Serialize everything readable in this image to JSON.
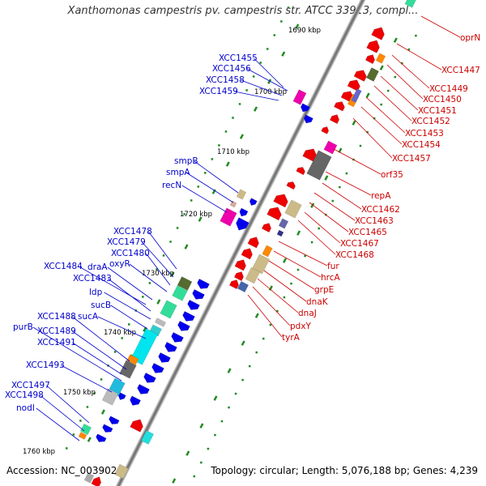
{
  "title": "Xanthomonas campestris pv. campestris str. ATCC 33913, compl...",
  "accession": "Accession: NC_003902",
  "summary": "Topology: circular; Length: 5,076,188 bp; Genes: 4,239",
  "colors": {
    "forward_label": "#0000cc",
    "reverse_label": "#cc0000",
    "forward_gene": "#0000ee",
    "reverse_gene": "#ee0000",
    "backbone": "#888888",
    "tick": "#228b22"
  },
  "kbp_labels": [
    "1690 kbp",
    "1700 kbp",
    "1710 kbp",
    "1720 kbp",
    "1730 kbp",
    "1740 kbp",
    "1750 kbp",
    "1760 kbp"
  ],
  "left_labels": [
    "XCC1455",
    "XCC1456",
    "XCC1458",
    "XCC1459",
    "smpB",
    "smpA",
    "recN",
    "XCC1478",
    "XCC1479",
    "XCC1480",
    "oxyR",
    "XCC1484",
    "draA",
    "XCC1483",
    "ldp",
    "sucB",
    "sucA",
    "XCC1488",
    "purB",
    "XCC1489",
    "XCC1491",
    "XCC1493",
    "XCC1497",
    "XCC1498",
    "nodI"
  ],
  "right_labels": [
    "oprN",
    "XCC1447",
    "XCC1449",
    "XCC1450",
    "XCC1451",
    "XCC1452",
    "XCC1453",
    "XCC1454",
    "XCC1457",
    "orf35",
    "repA",
    "XCC1462",
    "XCC1463",
    "XCC1465",
    "XCC1467",
    "XCC1468",
    "fur",
    "hrcA",
    "grpE",
    "dnaK",
    "dnaJ",
    "pdxY",
    "tyrA"
  ]
}
